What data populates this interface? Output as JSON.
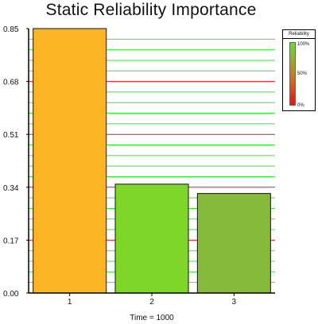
{
  "chart_data": {
    "type": "bar",
    "title": "Static Reliability Importance",
    "xlabel": "Time = 1000",
    "ylabel": "",
    "categories": [
      "1",
      "2",
      "3"
    ],
    "values": [
      0.85,
      0.35,
      0.32
    ],
    "ylim": [
      0,
      0.85
    ],
    "yticks": [
      "0.85",
      "0.68",
      "0.51",
      "0.34",
      "0.17",
      "0.00"
    ],
    "bar_colors": [
      "#fbb424",
      "#7ed628",
      "#86ba3a"
    ],
    "grid": true,
    "grid_color_minor": "#33ee33",
    "grid_color_major": "#e8141c",
    "legend": {
      "title": "Reliability",
      "placement": "right",
      "high_label": "100%",
      "mid_label": "50%",
      "low_label": "0%",
      "colors": [
        "#66dd33",
        "#cc7722",
        "#ee1111"
      ]
    }
  }
}
